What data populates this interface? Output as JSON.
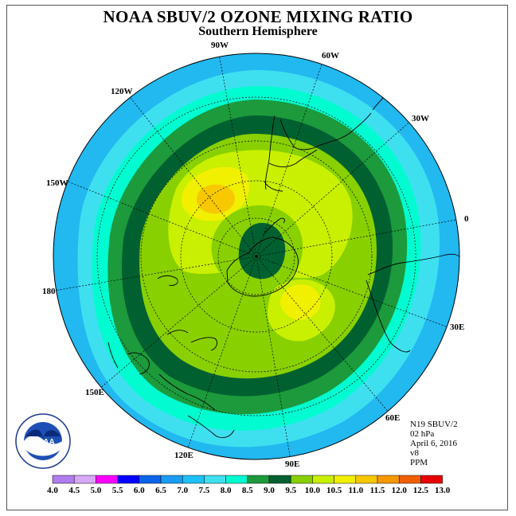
{
  "title": "NOAA SBUV/2 OZONE MIXING RATIO",
  "subtitle": "Southern Hemisphere",
  "longitude_labels": [
    "90W",
    "60W",
    "30W",
    "0",
    "30E",
    "60E",
    "90E",
    "120E",
    "150E",
    "180",
    "150W",
    "120W"
  ],
  "info": {
    "instrument": "N19 SBUV/2",
    "pressure": "02 hPa",
    "date": "April 6, 2016",
    "version": "v8",
    "units": "PPM"
  },
  "logo_text": "NOAA",
  "colorbar": {
    "labels": [
      "4.0",
      "4.5",
      "5.0",
      "5.5",
      "6.0",
      "6.5",
      "7.0",
      "7.5",
      "8.0",
      "8.5",
      "9.0",
      "9.5",
      "10.0",
      "10.5",
      "11.0",
      "11.5",
      "12.0",
      "12.5",
      "13.0"
    ],
    "colors": [
      "#b07cf0",
      "#d8a8f8",
      "#ff00ff",
      "#0000ff",
      "#0a64e8",
      "#1a9cf0",
      "#1ec0f8",
      "#3ee0f0",
      "#00fcd0",
      "#1c9a3c",
      "#006030",
      "#88d000",
      "#c8f000",
      "#f0f000",
      "#f8c800",
      "#f89800",
      "#f06000",
      "#e80000",
      "#8b5a3c"
    ]
  },
  "map_colors": {
    "outer": "#22b8f0",
    "band_7": "#1ec0f8",
    "band_75": "#3ee0f0",
    "band_8": "#00fcd0",
    "band_85": "#1c9a3c",
    "band_9": "#006030",
    "band_95": "#88d000",
    "band_10": "#c8f000",
    "band_105": "#f0f000",
    "band_11": "#f8c800"
  }
}
